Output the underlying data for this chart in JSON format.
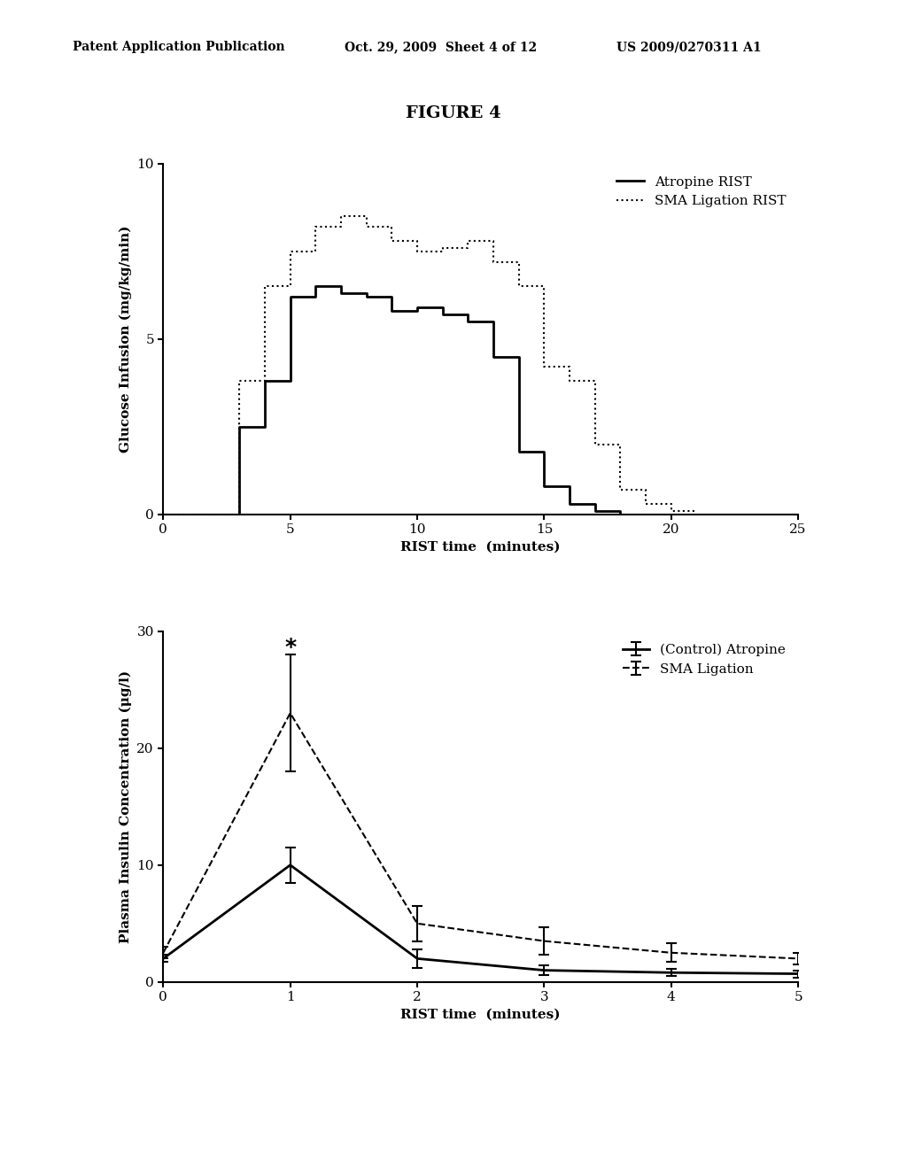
{
  "header_left": "Patent Application Publication",
  "header_mid": "Oct. 29, 2009  Sheet 4 of 12",
  "header_right": "US 2009/0270311 A1",
  "figure_title": "FIGURE 4",
  "plot1": {
    "title": "",
    "xlabel": "RIST time  (minutes)",
    "ylabel": "Glucose Infusion (mg/kg/min)",
    "xlim": [
      0,
      25
    ],
    "ylim": [
      0,
      10
    ],
    "xticks": [
      0,
      5,
      10,
      15,
      20,
      25
    ],
    "yticks": [
      0,
      5,
      10
    ],
    "legend1": "Atropine RIST",
    "legend2": "SMA Ligation RIST",
    "solid_x": [
      0,
      1,
      2,
      3,
      3,
      4,
      4,
      5,
      5,
      6,
      6,
      7,
      7,
      8,
      8,
      9,
      9,
      10,
      10,
      11,
      11,
      12,
      12,
      13,
      13,
      14,
      14,
      15,
      15,
      16,
      16,
      17,
      17,
      18,
      18,
      19,
      19,
      20
    ],
    "solid_y": [
      0,
      0,
      0,
      0,
      2.5,
      2.5,
      3.8,
      3.8,
      6.2,
      6.2,
      6.5,
      6.5,
      6.3,
      6.3,
      6.2,
      6.2,
      5.8,
      5.8,
      5.9,
      5.9,
      5.7,
      5.7,
      5.5,
      5.5,
      4.5,
      4.5,
      1.8,
      1.8,
      0.8,
      0.8,
      0.3,
      0.3,
      0.1,
      0.1,
      0,
      0,
      0,
      0
    ],
    "dotted_x": [
      0,
      1,
      2,
      3,
      3,
      4,
      4,
      5,
      5,
      6,
      6,
      7,
      7,
      8,
      8,
      9,
      9,
      10,
      10,
      11,
      11,
      12,
      12,
      13,
      13,
      14,
      14,
      15,
      15,
      16,
      16,
      17,
      17,
      18,
      18,
      19,
      19,
      20,
      20,
      21
    ],
    "dotted_y": [
      0,
      0,
      0,
      0,
      3.8,
      3.8,
      6.5,
      6.5,
      7.5,
      7.5,
      8.2,
      8.2,
      8.5,
      8.5,
      8.2,
      8.2,
      7.8,
      7.8,
      7.5,
      7.5,
      7.6,
      7.6,
      7.8,
      7.8,
      7.2,
      7.2,
      6.5,
      6.5,
      4.2,
      4.2,
      3.8,
      3.8,
      2.0,
      2.0,
      0.7,
      0.7,
      0.3,
      0.3,
      0.1,
      0.1
    ]
  },
  "plot2": {
    "title": "",
    "xlabel": "RIST time  (minutes)",
    "ylabel": "Plasma Insulin Concentration (μg/l)",
    "xlim": [
      0,
      5
    ],
    "ylim": [
      0,
      30
    ],
    "xticks": [
      0,
      1,
      2,
      3,
      4,
      5
    ],
    "yticks": [
      0,
      10,
      20,
      30
    ],
    "legend1": "(Control) Atropine",
    "legend2": "SMA Ligation",
    "solid_x": [
      0,
      1,
      2,
      3,
      4,
      5
    ],
    "solid_y": [
      2.0,
      10.0,
      2.0,
      1.0,
      0.8,
      0.7
    ],
    "solid_yerr": [
      0.3,
      1.5,
      0.8,
      0.4,
      0.3,
      0.3
    ],
    "dashed_x": [
      0,
      1,
      2,
      3,
      4,
      5
    ],
    "dashed_y": [
      2.5,
      23.0,
      5.0,
      3.5,
      2.5,
      2.0
    ],
    "dashed_yerr": [
      0.5,
      5.0,
      1.5,
      1.2,
      0.8,
      0.5
    ],
    "star_x": 1,
    "star_y": 29.5
  },
  "bg_color": "#ffffff",
  "text_color": "#000000",
  "line_color": "#000000"
}
